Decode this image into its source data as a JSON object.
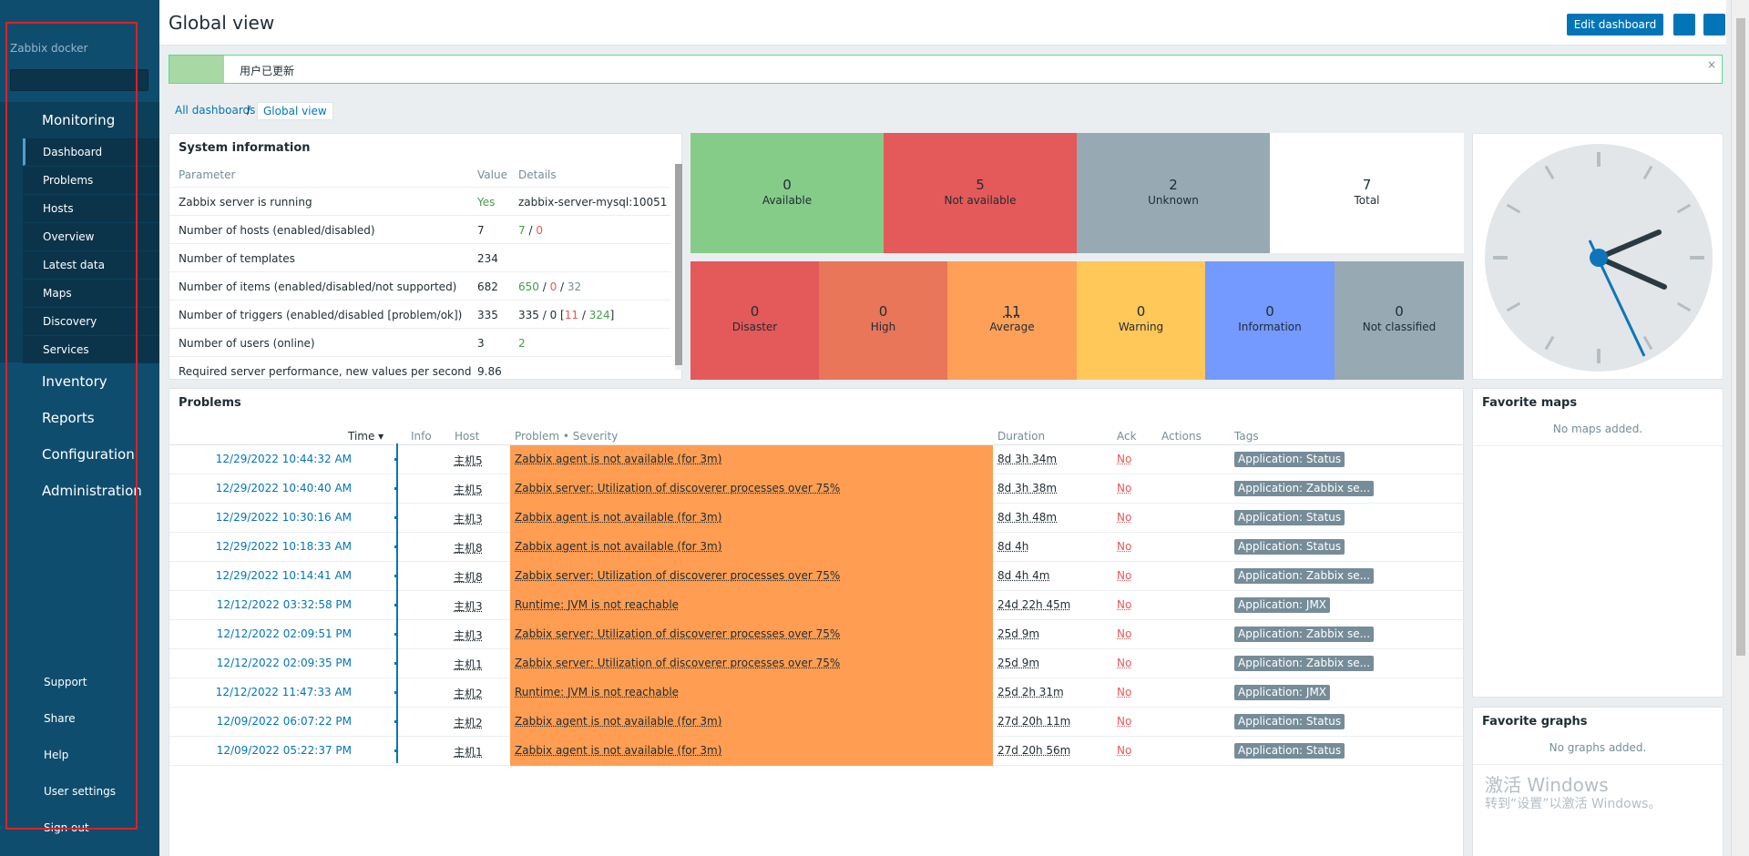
{
  "sidebar": {
    "brand": "Zabbix docker",
    "monitoring": "Monitoring",
    "sub_items": [
      "Dashboard",
      "Problems",
      "Hosts",
      "Overview",
      "Latest data",
      "Maps",
      "Discovery",
      "Services"
    ],
    "items": [
      "Inventory",
      "Reports",
      "Configuration",
      "Administration"
    ],
    "bottom": [
      "Support",
      "Share",
      "Help",
      "User settings",
      "Sign out"
    ]
  },
  "header": {
    "title": "Global view",
    "edit_button": "Edit dashboard"
  },
  "message": {
    "text": "用户已更新",
    "close": "×"
  },
  "breadcrumb": {
    "all": "All dashboards",
    "sep": "/",
    "current": "Global view"
  },
  "system_info": {
    "title": "System information",
    "headers": [
      "Parameter",
      "Value",
      "Details"
    ],
    "rows": [
      {
        "param": "Zabbix server is running",
        "value": "Yes",
        "details": "zabbix-server-mysql:10051"
      },
      {
        "param": "Number of hosts (enabled/disabled)",
        "value": "7",
        "d1": "7",
        "d2": "/",
        "d3": "0"
      },
      {
        "param": "Number of templates",
        "value": "234"
      },
      {
        "param": "Number of items (enabled/disabled/not supported)",
        "value": "682",
        "d1": "650",
        "d2": " / ",
        "d3": "0",
        "d4": " / ",
        "d5": "32"
      },
      {
        "param": "Number of triggers (enabled/disabled [problem/ok])",
        "value": "335",
        "d1": "335 / 0 [",
        "d2": "11",
        "d3": " / ",
        "d4": "324",
        "d5": "]"
      },
      {
        "param": "Number of users (online)",
        "value": "3",
        "details": "2"
      },
      {
        "param": "Required server performance, new values per second",
        "value": "9.86"
      }
    ]
  },
  "host_availability": [
    {
      "num": "0",
      "label": "Available",
      "color": "#86cc89"
    },
    {
      "num": "5",
      "label": "Not available",
      "color": "#e45959"
    },
    {
      "num": "2",
      "label": "Unknown",
      "color": "#97aab3"
    },
    {
      "num": "7",
      "label": "Total",
      "color": "#ffffff"
    }
  ],
  "severity": [
    {
      "num": "0",
      "label": "Disaster",
      "color": "#e45959"
    },
    {
      "num": "0",
      "label": "High",
      "color": "#e97659"
    },
    {
      "num": "11",
      "label": "Average",
      "color": "#ffa059"
    },
    {
      "num": "0",
      "label": "Warning",
      "color": "#ffc859"
    },
    {
      "num": "0",
      "label": "Information",
      "color": "#7499ff"
    },
    {
      "num": "0",
      "label": "Not classified",
      "color": "#97aab3"
    }
  ],
  "problems": {
    "title": "Problems",
    "headers": [
      "Time ▾",
      "Info",
      "Host",
      "Problem • Severity",
      "Duration",
      "Ack",
      "Actions",
      "Tags"
    ],
    "rows": [
      {
        "time": "12/29/2022 10:44:32 AM",
        "host": "主机5",
        "problem": "Zabbix agent is not available (for 3m)",
        "duration": "8d 3h 34m",
        "ack": "No",
        "tag": "Application: Status"
      },
      {
        "time": "12/29/2022 10:40:40 AM",
        "host": "主机5",
        "problem": "Zabbix server: Utilization of discoverer processes over 75%",
        "duration": "8d 3h 38m",
        "ack": "No",
        "tag": "Application: Zabbix se..."
      },
      {
        "time": "12/29/2022 10:30:16 AM",
        "host": "主机3",
        "problem": "Zabbix agent is not available (for 3m)",
        "duration": "8d 3h 48m",
        "ack": "No",
        "tag": "Application: Status"
      },
      {
        "time": "12/29/2022 10:18:33 AM",
        "host": "主机8",
        "problem": "Zabbix agent is not available (for 3m)",
        "duration": "8d 4h",
        "ack": "No",
        "tag": "Application: Status"
      },
      {
        "time": "12/29/2022 10:14:41 AM",
        "host": "主机8",
        "problem": "Zabbix server: Utilization of discoverer processes over 75%",
        "duration": "8d 4h 4m",
        "ack": "No",
        "tag": "Application: Zabbix se..."
      },
      {
        "time": "12/12/2022 03:32:58 PM",
        "host": "主机3",
        "problem": "Runtime: JVM is not reachable",
        "duration": "24d 22h 45m",
        "ack": "No",
        "tag": "Application: JMX"
      },
      {
        "time": "12/12/2022 02:09:51 PM",
        "host": "主机3",
        "problem": "Zabbix server: Utilization of discoverer processes over 75%",
        "duration": "25d 9m",
        "ack": "No",
        "tag": "Application: Zabbix se..."
      },
      {
        "time": "12/12/2022 02:09:35 PM",
        "host": "主机1",
        "problem": "Zabbix server: Utilization of discoverer processes over 75%",
        "duration": "25d 9m",
        "ack": "No",
        "tag": "Application: Zabbix se..."
      },
      {
        "time": "12/12/2022 11:47:33 AM",
        "host": "主机2",
        "problem": "Runtime: JVM is not reachable",
        "duration": "25d 2h 31m",
        "ack": "No",
        "tag": "Application: JMX"
      },
      {
        "time": "12/09/2022 06:07:22 PM",
        "host": "主机2",
        "problem": "Zabbix agent is not available (for 3m)",
        "duration": "27d 20h 11m",
        "ack": "No",
        "tag": "Application: Status"
      },
      {
        "time": "12/09/2022 05:22:37 PM",
        "host": "主机1",
        "problem": "Zabbix agent is not available (for 3m)",
        "duration": "27d 20h 56m",
        "ack": "No",
        "tag": "Application: Status"
      }
    ]
  },
  "favorite_maps": {
    "title": "Favorite maps",
    "empty": "No maps added."
  },
  "favorite_graphs": {
    "title": "Favorite graphs",
    "empty": "No graphs added."
  },
  "watermark": {
    "line1": "激活 Windows",
    "line2": "转到“设置”以激活 Windows。"
  },
  "icons": [
    "clock-icon",
    "kiosk-mode-icon",
    "dashboard-actions-icon",
    "close-icon",
    "sort-desc-icon"
  ]
}
